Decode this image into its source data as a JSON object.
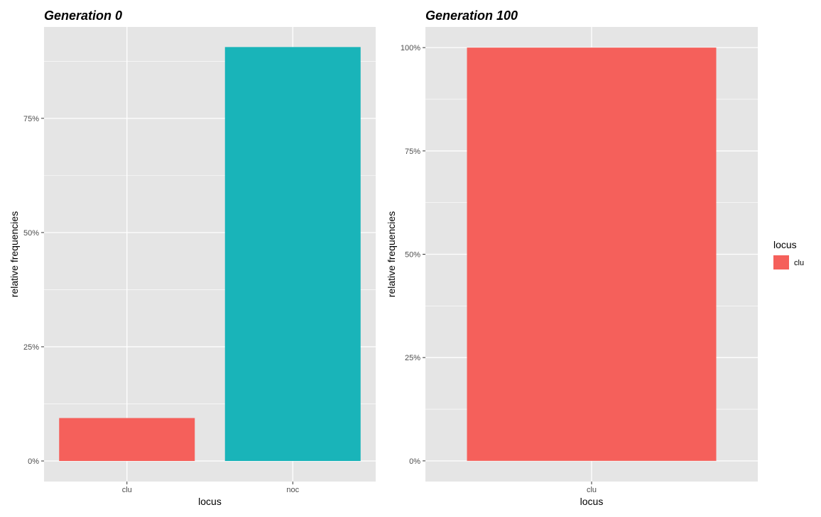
{
  "colors": {
    "panel_bg": "#e5e5e5",
    "grid": "#ffffff",
    "tick": "#333333",
    "clu": "#f5605b",
    "noc": "#19b4b9"
  },
  "chart_data": [
    {
      "type": "bar",
      "title": "Generation 0",
      "xlabel": "locus",
      "ylabel": "relative frequencies",
      "categories": [
        "clu",
        "noc"
      ],
      "values": [
        0.094,
        0.906
      ],
      "fill_by": [
        "clu",
        "noc"
      ],
      "ylim": [
        -0.045,
        0.95
      ],
      "yticks": [
        0,
        0.25,
        0.5,
        0.75
      ],
      "ytick_labels": [
        "0%",
        "25%",
        "50%",
        "75%"
      ],
      "grid": true
    },
    {
      "type": "bar",
      "title": "Generation 100",
      "xlabel": "locus",
      "ylabel": "relative frequencies",
      "categories": [
        "clu"
      ],
      "values": [
        1.0
      ],
      "fill_by": [
        "clu"
      ],
      "ylim": [
        -0.05,
        1.05
      ],
      "yticks": [
        0,
        0.25,
        0.5,
        0.75,
        1.0
      ],
      "ytick_labels": [
        "0%",
        "25%",
        "50%",
        "75%",
        "100%"
      ],
      "grid": true
    }
  ],
  "legend": {
    "title": "locus",
    "entries": [
      {
        "label": "clu",
        "color_key": "clu"
      }
    ],
    "placement": "right"
  }
}
